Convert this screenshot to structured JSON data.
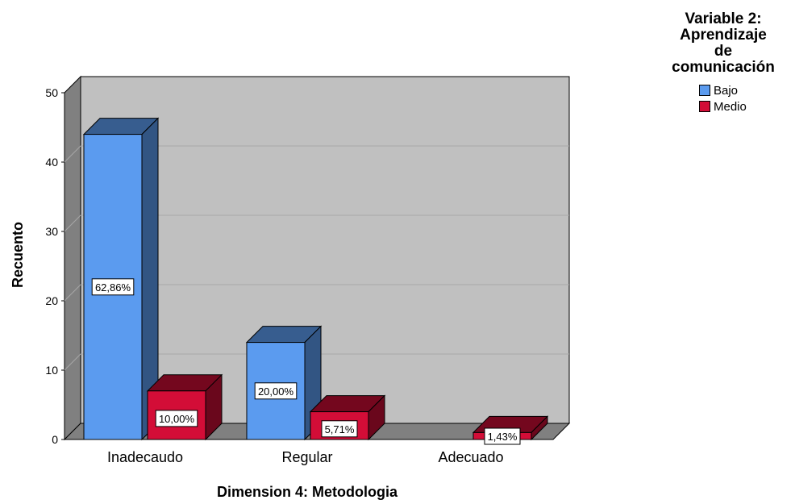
{
  "chart_data": {
    "type": "bar",
    "xlabel": "Dimension 4: Metodologia",
    "ylabel": "Recuento",
    "ylim": [
      0,
      50
    ],
    "yticks": [
      "0",
      "10",
      "20",
      "30",
      "40",
      "50"
    ],
    "categories": [
      "Inadecaudo",
      "Regular",
      "Adecuado"
    ],
    "series": [
      {
        "name": "Bajo",
        "color": "#5b9bef",
        "values": [
          44,
          14,
          0
        ],
        "labels": [
          "62,86%",
          "20,00%",
          ""
        ]
      },
      {
        "name": "Medio",
        "color": "#d30d37",
        "values": [
          7,
          4,
          1
        ],
        "labels": [
          "10,00%",
          "5,71%",
          "1,43%"
        ]
      }
    ],
    "legend": {
      "title_lines": [
        "Variable 2:",
        "Aprendizaje",
        "de",
        "comunicación"
      ],
      "position": "top-right"
    },
    "grid": true,
    "style": "3d"
  }
}
